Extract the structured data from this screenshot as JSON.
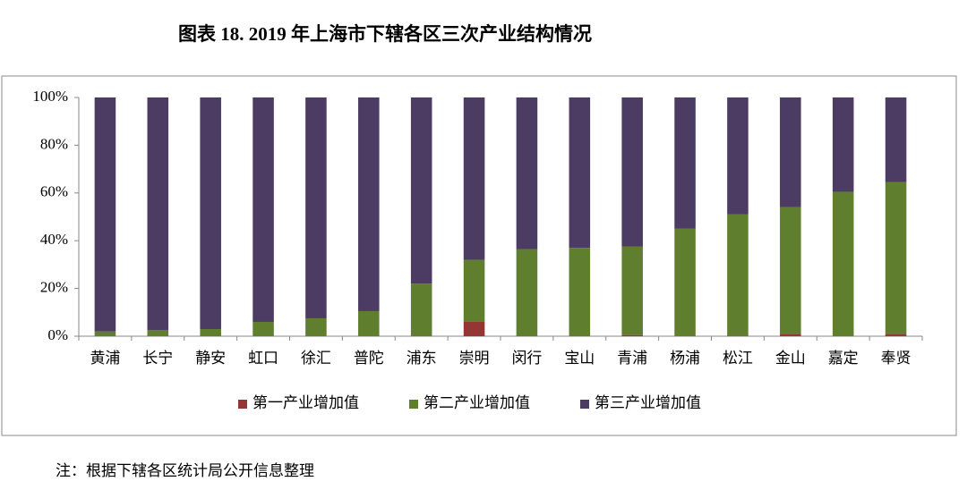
{
  "chart_data": {
    "type": "stacked_bar",
    "title": "图表 18. 2019 年上海市下辖各区三次产业结构情况",
    "note": "注：根据下辖各区统计局公开信息整理",
    "categories": [
      "黄浦",
      "长宁",
      "静安",
      "虹口",
      "徐汇",
      "普陀",
      "浦东",
      "崇明",
      "闵行",
      "宝山",
      "青浦",
      "杨浦",
      "松江",
      "金山",
      "嘉定",
      "奉贤"
    ],
    "series": [
      {
        "name": "第一产业增加值",
        "color": "#943634",
        "values": [
          0,
          0,
          0,
          0,
          0,
          0,
          0.1,
          6,
          0.1,
          0.1,
          0.5,
          0,
          0.3,
          1,
          0.1,
          1
        ]
      },
      {
        "name": "第二产业增加值",
        "color": "#5f7f2e",
        "values": [
          2,
          2.5,
          3,
          6,
          7.5,
          10.5,
          21.9,
          26,
          36.4,
          36.9,
          37,
          45,
          50.7,
          53,
          60.4,
          63.5
        ]
      },
      {
        "name": "第三产业增加值",
        "color": "#4c3b62",
        "values": [
          98,
          97.5,
          97,
          94,
          92.5,
          89.5,
          78,
          68,
          63.5,
          63,
          62.5,
          55,
          49,
          46,
          39.5,
          35.5
        ]
      }
    ],
    "ylim": [
      0,
      100
    ],
    "yticks": [
      {
        "value": 0,
        "label": "0%"
      },
      {
        "value": 20,
        "label": "20%"
      },
      {
        "value": 40,
        "label": "40%"
      },
      {
        "value": 60,
        "label": "60%"
      },
      {
        "value": 80,
        "label": "80%"
      },
      {
        "value": 100,
        "label": "100%"
      }
    ],
    "legend": "bottom"
  }
}
